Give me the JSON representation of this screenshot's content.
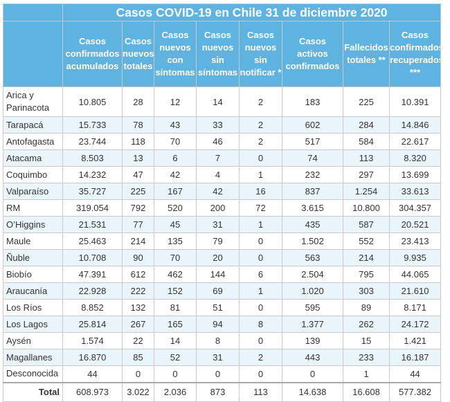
{
  "title": "Casos COVID-19 en Chile 31 de diciembre 2020",
  "columns": [
    "Casos confirmados acumulados",
    "Casos nuevos totales",
    "Casos nuevos con síntomas",
    "Casos nuevos sin síntomas",
    "Casos nuevos sin notificar *",
    "Casos activos confirmados",
    "Fallecidos totales **",
    "Casos confirmados recuperados ***"
  ],
  "rows": [
    {
      "region": "Arica y Parinacota",
      "values": [
        "10.805",
        "28",
        "12",
        "14",
        "2",
        "183",
        "225",
        "10.391"
      ]
    },
    {
      "region": "Tarapacá",
      "values": [
        "15.733",
        "78",
        "43",
        "33",
        "2",
        "602",
        "284",
        "14.846"
      ]
    },
    {
      "region": "Antofagasta",
      "values": [
        "23.744",
        "118",
        "70",
        "46",
        "2",
        "517",
        "584",
        "22.617"
      ]
    },
    {
      "region": "Atacama",
      "values": [
        "8.503",
        "13",
        "6",
        "7",
        "0",
        "74",
        "113",
        "8.320"
      ]
    },
    {
      "region": "Coquimbo",
      "values": [
        "14.232",
        "47",
        "42",
        "4",
        "1",
        "232",
        "297",
        "13.699"
      ]
    },
    {
      "region": "Valparaíso",
      "values": [
        "35.727",
        "225",
        "167",
        "42",
        "16",
        "837",
        "1.254",
        "33.613"
      ]
    },
    {
      "region": "RM",
      "values": [
        "319.054",
        "792",
        "520",
        "200",
        "72",
        "3.615",
        "10.800",
        "304.357"
      ]
    },
    {
      "region": "O’Higgins",
      "values": [
        "21.531",
        "77",
        "45",
        "31",
        "1",
        "435",
        "587",
        "20.521"
      ]
    },
    {
      "region": "Maule",
      "values": [
        "25.463",
        "214",
        "135",
        "79",
        "0",
        "1.502",
        "552",
        "23.413"
      ]
    },
    {
      "region": "Ñuble",
      "values": [
        "10.708",
        "90",
        "70",
        "20",
        "0",
        "563",
        "214",
        "9.935"
      ]
    },
    {
      "region": "Biobío",
      "values": [
        "47.391",
        "612",
        "462",
        "144",
        "6",
        "2.504",
        "795",
        "44.065"
      ]
    },
    {
      "region": "Araucanía",
      "values": [
        "22.928",
        "222",
        "152",
        "69",
        "1",
        "1.020",
        "303",
        "21.610"
      ]
    },
    {
      "region": "Los Ríos",
      "values": [
        "8.852",
        "132",
        "81",
        "51",
        "0",
        "595",
        "89",
        "8.171"
      ]
    },
    {
      "region": "Los Lagos",
      "values": [
        "25.814",
        "267",
        "165",
        "94",
        "8",
        "1.377",
        "262",
        "24.172"
      ]
    },
    {
      "region": "Aysén",
      "values": [
        "1.574",
        "22",
        "14",
        "8",
        "0",
        "139",
        "15",
        "1.421"
      ]
    },
    {
      "region": "Magallanes",
      "values": [
        "16.870",
        "85",
        "52",
        "31",
        "2",
        "443",
        "233",
        "16.187"
      ]
    },
    {
      "region": "Desconocida",
      "values": [
        "44",
        "0",
        "0",
        "0",
        "0",
        "0",
        "1",
        "44"
      ]
    }
  ],
  "total": {
    "label": "Total",
    "values": [
      "608.973",
      "3.022",
      "2.036",
      "873",
      "113",
      "14.638",
      "16.608",
      "577.382"
    ]
  }
}
